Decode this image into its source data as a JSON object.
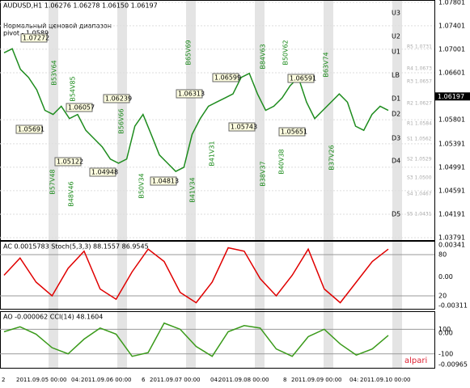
{
  "chart_data": [
    {
      "type": "line",
      "title": "AUDUSD,H1  1.06276 1.06278 1.06150 1.06197",
      "subtitle": "Нормальный ценовой диапазон",
      "pivot_label": "pivot - 1.0589",
      "values": [
        1.0694,
        1.0701,
        1.0666,
        1.0652,
        1.0631,
        1.0596,
        1.0589,
        1.0603,
        1.0582,
        1.0589,
        1.0562,
        1.0548,
        1.0534,
        1.0513,
        1.0506,
        1.0513,
        1.0569,
        1.0589,
        1.0555,
        1.052,
        1.0506,
        1.0492,
        1.0499,
        1.0555,
        1.0582,
        1.0603,
        1.061,
        1.0617,
        1.0624,
        1.0652,
        1.0659,
        1.0624,
        1.0596,
        1.0603,
        1.0617,
        1.0638,
        1.0652,
        1.061,
        1.0582,
        1.0596,
        1.061,
        1.0624,
        1.061,
        1.0569,
        1.0562,
        1.0589,
        1.0603,
        1.0596
      ],
      "color": "#1e8c1e",
      "ylim": [
        1.0375,
        1.0784
      ],
      "yticks": [
        1.07801,
        1.07401,
        1.07001,
        1.06601,
        1.05801,
        1.05391,
        1.04991,
        1.04591,
        1.04191,
        1.03791
      ],
      "current_price": 1.06197,
      "levels": [
        "U3",
        "U2",
        "U1",
        "LB",
        "D1",
        "D2",
        "D3",
        "D4",
        "D5"
      ],
      "pivot_levels": [
        "R5 1.0731",
        "R4 1.0673",
        "R3 1.0657",
        "R2 1.0627",
        "R1 1.0584",
        "S1 1.0562",
        "S2 1.0529",
        "S3 1.0500",
        "S4 1.0467",
        "S5 1.0431"
      ],
      "box_labels": [
        "1.07272",
        "1.06057",
        "1.05691",
        "1.05122",
        "1.04948",
        "1.04813",
        "1.06239",
        "1.06313",
        "1.06599",
        "1.05743",
        "1.06591",
        "1.05651"
      ],
      "wave_labels": [
        "B53V64",
        "B54V85",
        "B56V66",
        "B57V48",
        "B48V46",
        "B50V34",
        "B65V69",
        "B41V31",
        "B41V34",
        "B84V63",
        "B50V62",
        "B38V37",
        "B40V38",
        "B63V74",
        "B37V26"
      ]
    },
    {
      "type": "line",
      "title": "AC 0.0015783  Stoch(5,3,3) 88.1557 86.9545",
      "values": [
        50,
        75,
        40,
        20,
        60,
        85,
        30,
        15,
        55,
        88,
        70,
        25,
        10,
        40,
        90,
        85,
        45,
        20,
        50,
        88,
        30,
        10,
        40,
        70,
        88
      ],
      "color": "#e00000",
      "ylim": [
        0,
        100
      ],
      "yticks": [
        80,
        20
      ],
      "y2lim": [
        -0.00311,
        0.00341
      ],
      "y2ticks": [
        0.00341,
        {
          "value": 0,
          "label": "0.00"
        },
        -0.00311
      ]
    },
    {
      "type": "line",
      "title": "AO -0.000062  CCI(14) 48.1604",
      "values": [
        80,
        120,
        60,
        -50,
        -100,
        20,
        110,
        60,
        -120,
        -90,
        150,
        100,
        -40,
        -120,
        80,
        130,
        110,
        -60,
        -120,
        40,
        100,
        -20,
        -110,
        -60,
        50
      ],
      "color": "#3a9a1a",
      "ylim": [
        -220,
        247
      ],
      "yticks": [
        100,
        -100
      ],
      "y2lim": [
        -0.00965,
        0.006
      ],
      "y2ticks": [
        {
          "value": 0,
          "label": "0.00"
        },
        -0.00965
      ]
    }
  ],
  "brand": "alpari",
  "x_axis_labels": [
    "2",
    "2011.09.05 00:00",
    "04:",
    "2011.09.06 00:00",
    "6",
    "2011.09.07 00:00",
    "04:",
    "2011.09.08 00:00",
    "8",
    "2011.09.09 00:00",
    "04:",
    "2011.09.10 00:00"
  ]
}
